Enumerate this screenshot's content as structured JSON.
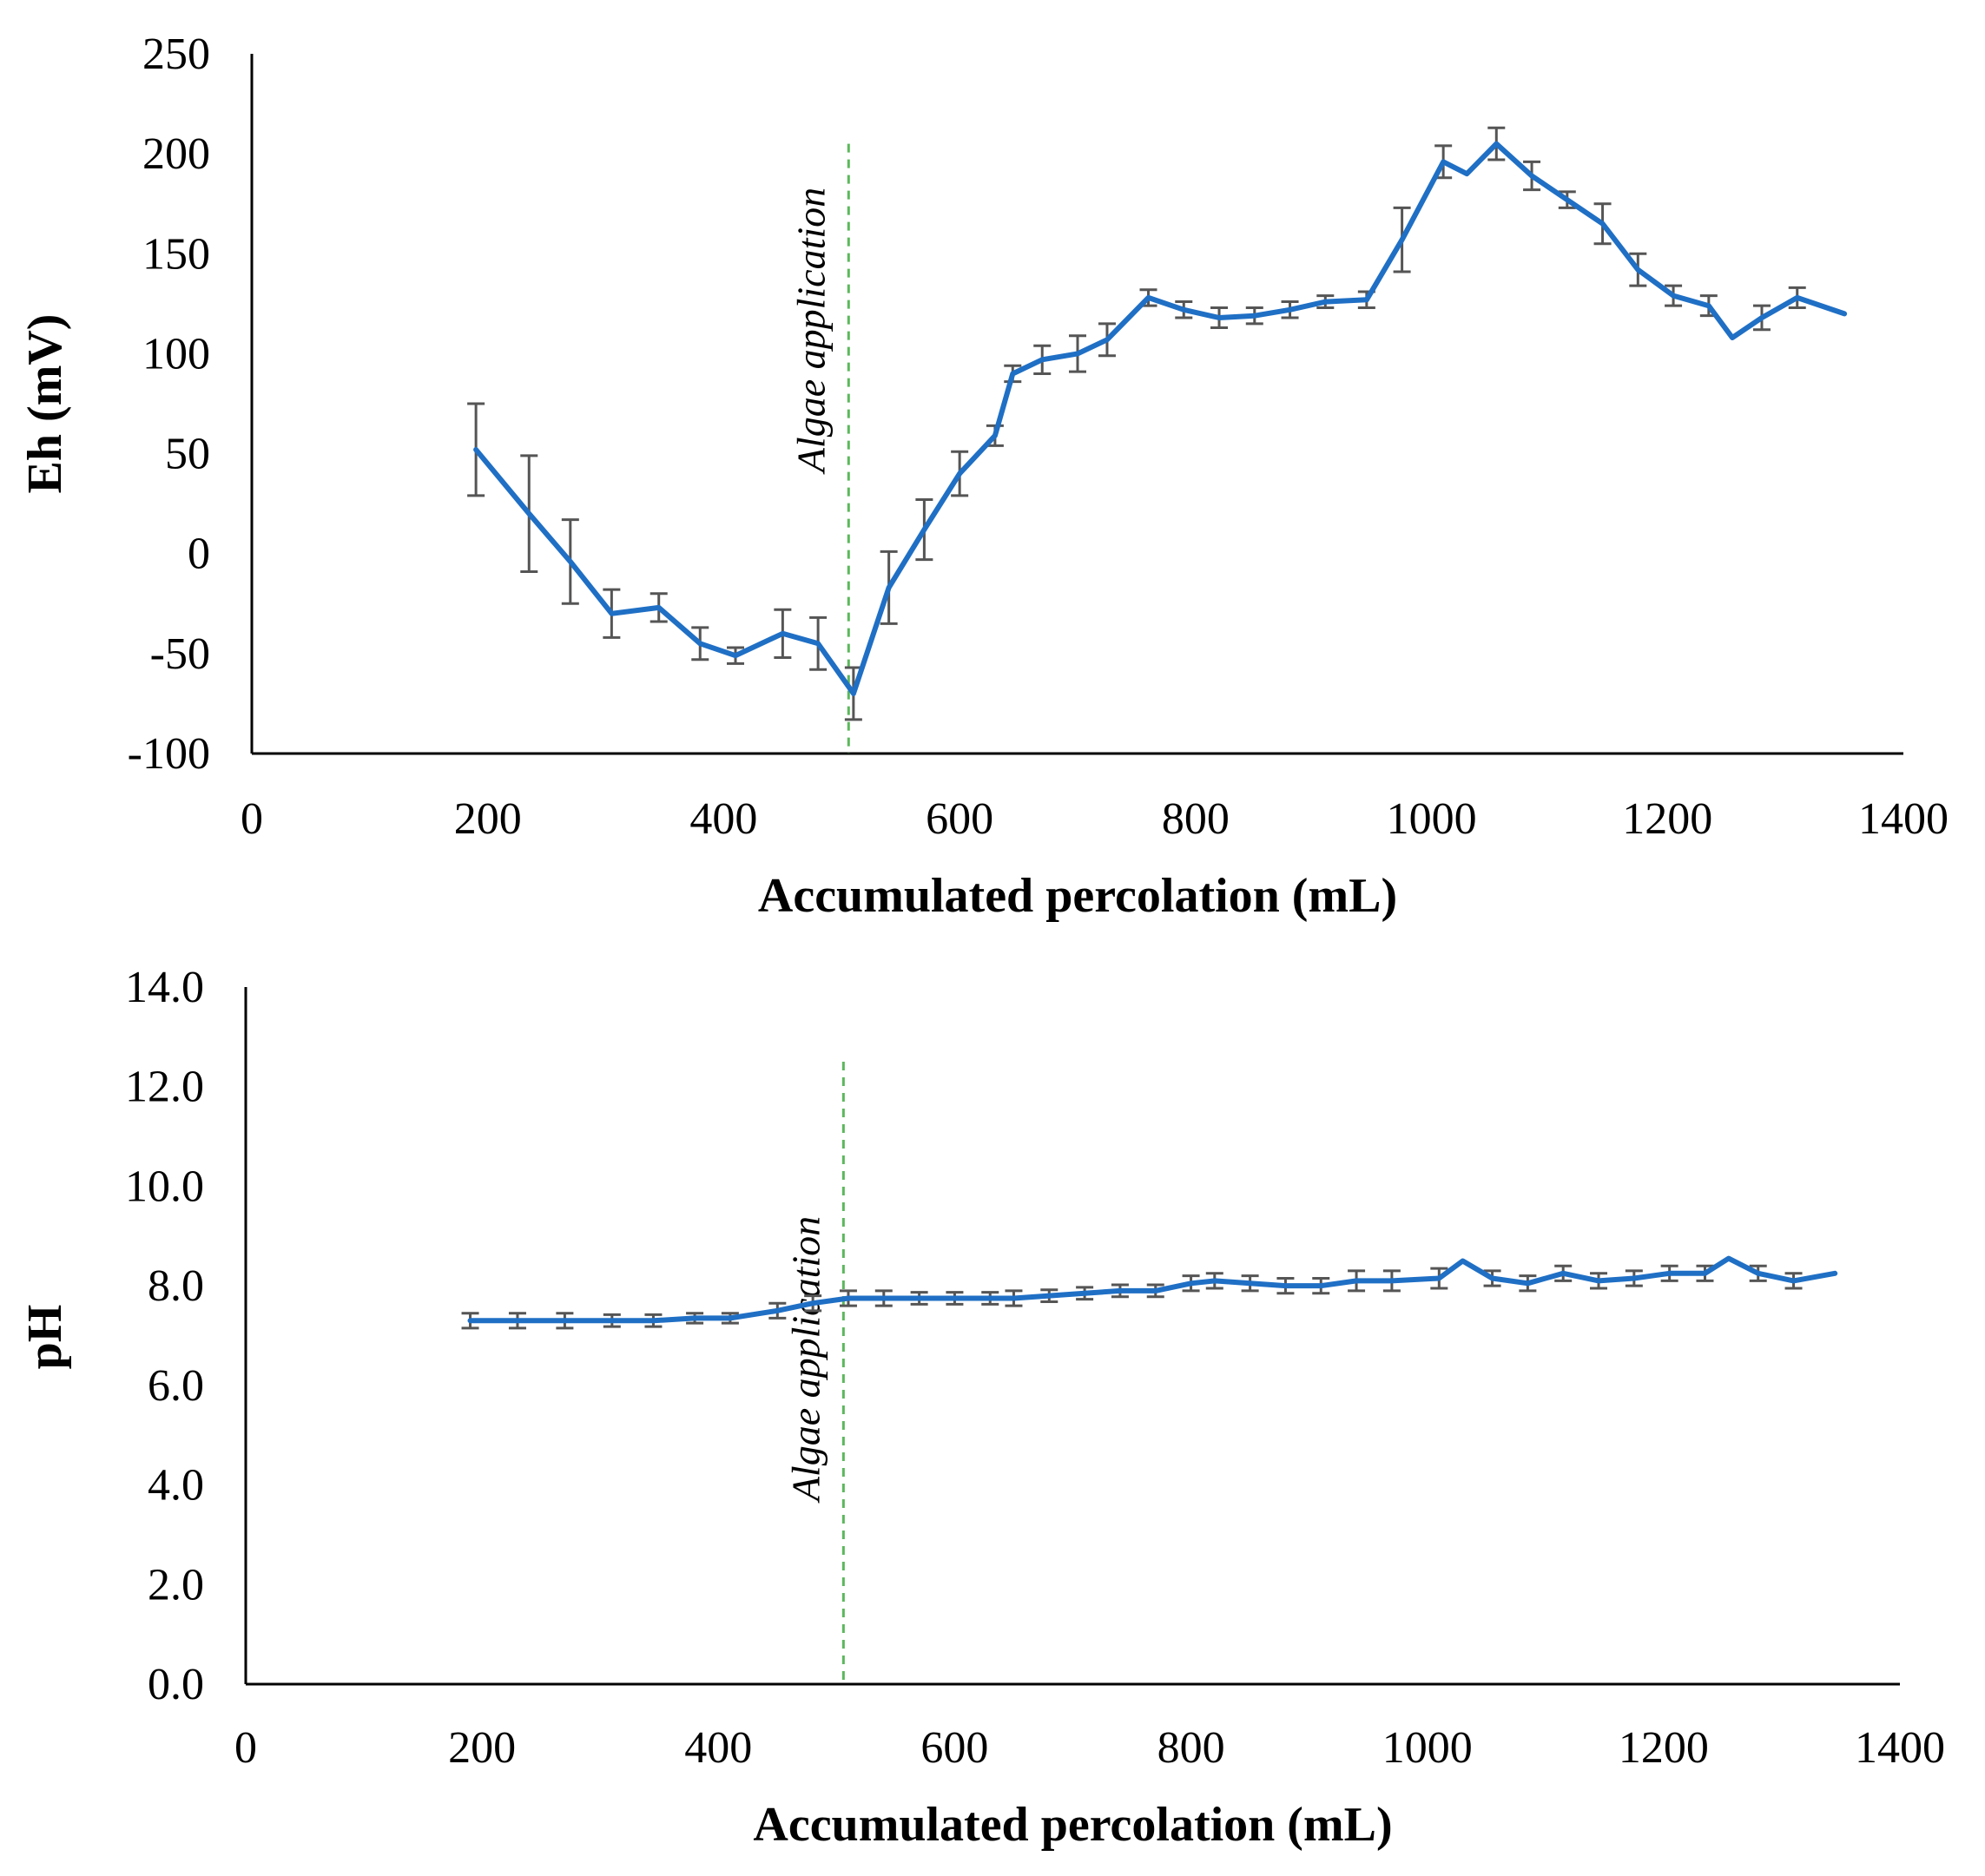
{
  "chart_data": [
    {
      "type": "line",
      "title": "",
      "xlabel": "Accumulated percolation (mL)",
      "ylabel": "Eh (mV)",
      "xlim": [
        0,
        1400
      ],
      "ylim": [
        -100,
        250
      ],
      "xticks": [
        0,
        200,
        400,
        600,
        800,
        1000,
        1200,
        1400
      ],
      "yticks": [
        250,
        200,
        150,
        100,
        50,
        0,
        -50,
        -100
      ],
      "annotation": {
        "text": "Algae application",
        "x": 500,
        "y_from": -100,
        "y_to": 205
      },
      "series": [
        {
          "name": "Eh",
          "color": "#1f6fc5",
          "x": [
            190,
            235,
            270,
            305,
            345,
            380,
            410,
            450,
            480,
            510,
            540,
            570,
            600,
            630,
            645,
            670,
            700,
            725,
            760,
            790,
            820,
            850,
            880,
            910,
            945,
            975,
            1010,
            1030,
            1055,
            1085,
            1115,
            1145,
            1175,
            1205,
            1235,
            1255,
            1280,
            1310,
            1350
          ],
          "values": [
            52,
            20,
            -4,
            -30,
            -27,
            -45,
            -51,
            -40,
            -45,
            -70,
            -17,
            12,
            40,
            59,
            90,
            97,
            100,
            107,
            128,
            122,
            118,
            119,
            122,
            126,
            127,
            157,
            196,
            190,
            205,
            189,
            177,
            165,
            142,
            129,
            124,
            108,
            118,
            128,
            120
          ],
          "errors": [
            23,
            29,
            21,
            12,
            7,
            8,
            4,
            12,
            13,
            13,
            18,
            15,
            11,
            5,
            4,
            7,
            9,
            8,
            4,
            4,
            5,
            4,
            4,
            3,
            4,
            16,
            8,
            0,
            8,
            7,
            4,
            10,
            8,
            5,
            5,
            0,
            6,
            5,
            0
          ]
        }
      ]
    },
    {
      "type": "line",
      "title": "",
      "xlabel": "Accumulated percolation (mL)",
      "ylabel": "pH",
      "xlim": [
        0,
        1400
      ],
      "ylim": [
        0,
        14
      ],
      "xticks": [
        0,
        200,
        400,
        600,
        800,
        1000,
        1200,
        1400
      ],
      "yticks": [
        "14.0",
        "12.0",
        "10.0",
        "8.0",
        "6.0",
        "4.0",
        "2.0",
        "0.0"
      ],
      "annotation": {
        "text": "Algae application",
        "x": 500,
        "y_from": 0,
        "y_to": 12.5
      },
      "series": [
        {
          "name": "pH",
          "color": "#1f6fc5",
          "x": [
            190,
            230,
            270,
            310,
            345,
            380,
            410,
            450,
            480,
            510,
            540,
            570,
            600,
            630,
            650,
            680,
            710,
            740,
            770,
            800,
            820,
            850,
            880,
            910,
            940,
            970,
            1010,
            1030,
            1055,
            1085,
            1115,
            1145,
            1175,
            1205,
            1235,
            1255,
            1280,
            1310,
            1345
          ],
          "values": [
            7.3,
            7.3,
            7.3,
            7.3,
            7.3,
            7.35,
            7.35,
            7.5,
            7.65,
            7.75,
            7.75,
            7.75,
            7.75,
            7.75,
            7.75,
            7.8,
            7.85,
            7.9,
            7.9,
            8.05,
            8.1,
            8.05,
            8.0,
            8.0,
            8.1,
            8.1,
            8.15,
            8.5,
            8.15,
            8.05,
            8.25,
            8.1,
            8.15,
            8.25,
            8.25,
            8.55,
            8.25,
            8.1,
            8.25
          ],
          "errors": [
            0.15,
            0.15,
            0.15,
            0.12,
            0.12,
            0.1,
            0.1,
            0.15,
            0.15,
            0.15,
            0.15,
            0.12,
            0.12,
            0.12,
            0.15,
            0.12,
            0.12,
            0.12,
            0.12,
            0.15,
            0.15,
            0.15,
            0.15,
            0.15,
            0.2,
            0.2,
            0.2,
            0,
            0.15,
            0.15,
            0.15,
            0.15,
            0.15,
            0.15,
            0.15,
            0,
            0.15,
            0.15,
            0
          ]
        }
      ]
    }
  ]
}
